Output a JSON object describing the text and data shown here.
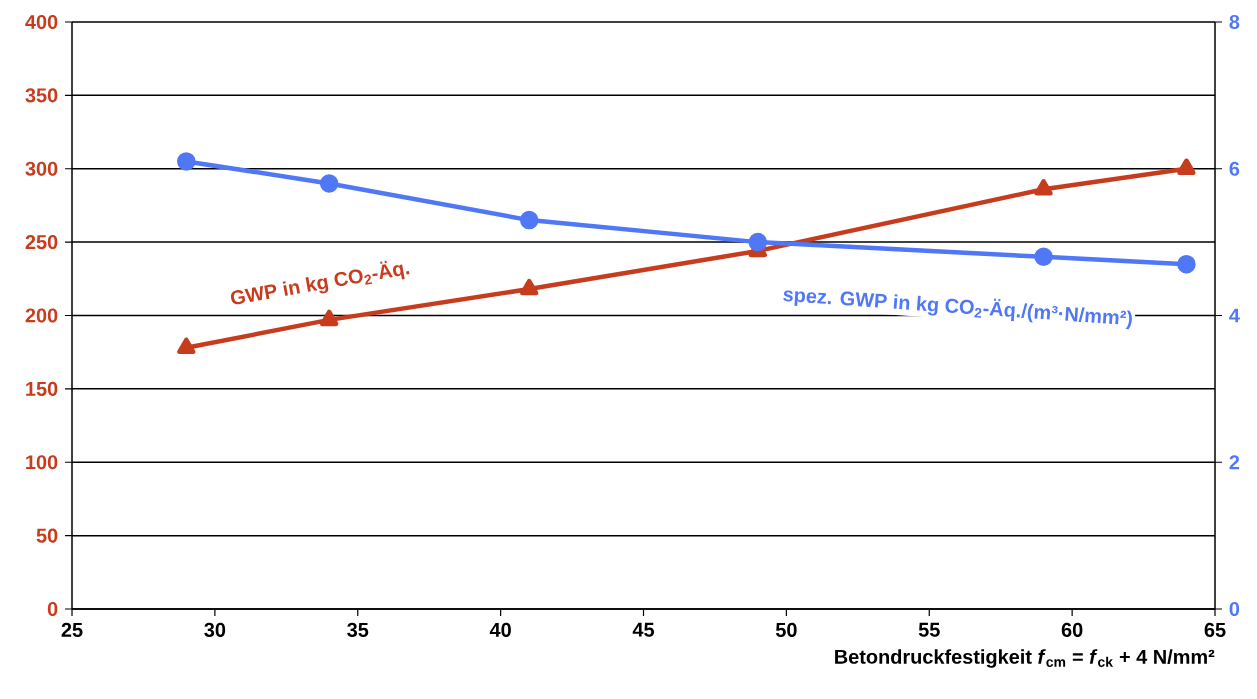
{
  "chart_data": {
    "type": "line",
    "xlabel": "Betondruckfestigkeit *f*$_{cm}$ = *f*$_{ck}$ + 4 N/mm²",
    "x": [
      29,
      34,
      41,
      49,
      59,
      64
    ],
    "xlim": [
      25,
      65
    ],
    "xticks": [
      25,
      30,
      35,
      40,
      45,
      50,
      55,
      60,
      65
    ],
    "ylim": [
      0,
      400
    ],
    "yticks": [
      0,
      50,
      100,
      150,
      200,
      250,
      300,
      350,
      400
    ],
    "y2lim": [
      0,
      8
    ],
    "y2ticks": [
      0,
      2,
      4,
      6,
      8
    ],
    "grid": "y",
    "line_style": "solid",
    "series": [
      {
        "name": "GWP in kg CO$_{2}$-Äq.",
        "color": "#c83c1e",
        "marker": "triangle",
        "values": [
          178,
          197,
          218,
          244,
          286,
          300
        ]
      },
      {
        "name": "spez. GWP in kg CO$_{2}$-Äq./(m³·N/mm²)",
        "color": "#5077f5",
        "marker": "circle",
        "axis": "y2",
        "values": [
          6.1,
          5.8,
          5.3,
          5.0,
          4.8,
          4.7
        ]
      }
    ]
  }
}
